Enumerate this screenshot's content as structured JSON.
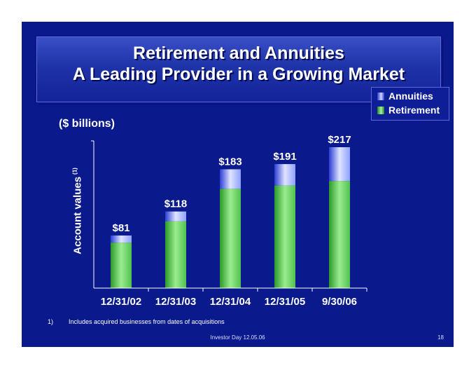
{
  "title": {
    "line1": "Retirement and Annuities",
    "line2": "A Leading Provider in a Growing Market"
  },
  "legend": {
    "items": [
      {
        "label": "Annuities",
        "color": "#8ea0ff"
      },
      {
        "label": "Retirement",
        "color": "#5fd35f"
      }
    ]
  },
  "unit_label": "($ billions)",
  "y_axis": {
    "label": "Account values",
    "footnote_marker": "(1)"
  },
  "chart_data": {
    "type": "bar",
    "stacked": true,
    "categories": [
      "12/31/02",
      "12/31/03",
      "12/31/04",
      "12/31/05",
      "9/30/06"
    ],
    "series": [
      {
        "name": "Retirement",
        "values": [
          70,
          103,
          153,
          158,
          165
        ]
      },
      {
        "name": "Annuities",
        "values": [
          11,
          15,
          30,
          33,
          52
        ]
      }
    ],
    "totals": [
      81,
      118,
      183,
      191,
      217
    ],
    "data_labels": [
      "$81",
      "$118",
      "$183",
      "$191",
      "$217"
    ],
    "ylim": [
      0,
      217
    ],
    "grid": false,
    "legend_position": "top-right"
  },
  "footnote": {
    "number": "1)",
    "text": "Includes acquired businesses from dates of acquisitions"
  },
  "footer": {
    "text": "Investor Day 12.05.06",
    "page": "18"
  },
  "colors": {
    "background": "#0a1a8c",
    "annuities": "#8ea0ff",
    "retirement": "#5fd35f",
    "text": "#ffffff"
  }
}
